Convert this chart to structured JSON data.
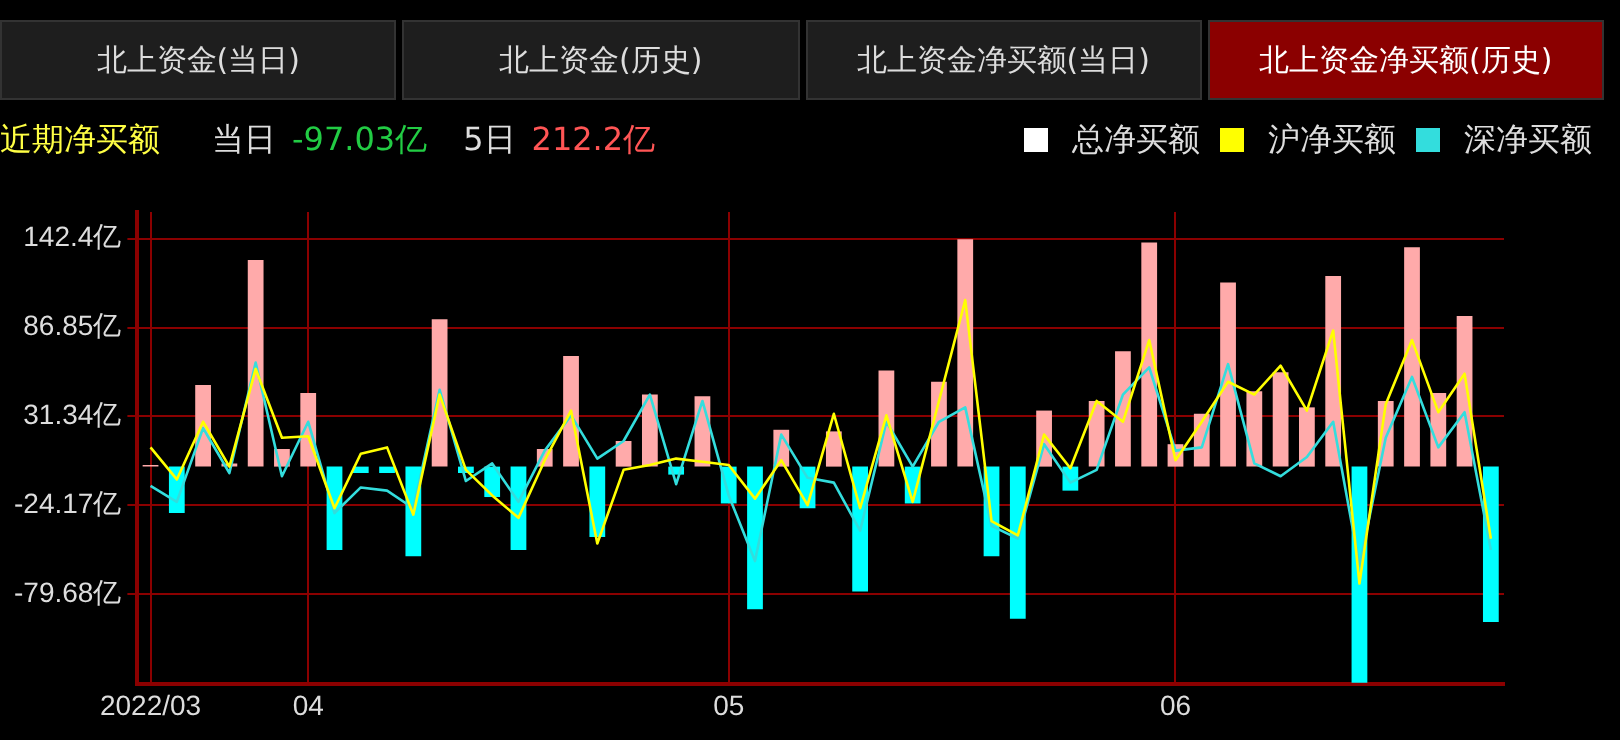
{
  "chart_data": {
    "type": "bar",
    "title": "近期净买额",
    "annotations": [
      "北上资金(当日)",
      "北上资金(历史)",
      "北上资金净买额(当日)",
      "北上资金净买额(历史)",
      "当日",
      "-97.03亿",
      "5日",
      "212.2亿"
    ],
    "categories": [
      "2022/03",
      null,
      null,
      null,
      null,
      null,
      "04",
      null,
      null,
      null,
      null,
      null,
      null,
      null,
      null,
      null,
      null,
      null,
      null,
      null,
      null,
      null,
      "05",
      null,
      null,
      null,
      null,
      null,
      null,
      null,
      null,
      null,
      null,
      null,
      null,
      null,
      null,
      null,
      null,
      "06",
      null,
      null,
      null,
      null,
      null,
      null,
      null,
      null,
      null,
      null,
      null,
      null
    ],
    "series": [
      {
        "name": "总净买额",
        "color": "#ffffff",
        "colors": [
          "#ffaaaa",
          "#00ffff",
          "#ffaaaa",
          "#ffaaaa",
          "#ffaaaa",
          "#ffaaaa",
          "#ffaaaa",
          "#00ffff",
          "#00ffff",
          "#00ffff",
          "#00ffff",
          "#ffaaaa",
          "#00ffff",
          "#00ffff",
          "#00ffff",
          "#ffaaaa",
          "#ffaaaa",
          "#00ffff",
          "#ffaaaa",
          "#ffaaaa",
          "#00ffff",
          "#ffaaaa",
          "#00ffff",
          "#00ffff",
          "#ffaaaa",
          "#00ffff",
          "#ffaaaa",
          "#00ffff",
          "#ffaaaa",
          "#00ffff",
          "#ffaaaa",
          "#ffaaaa",
          "#00ffff",
          "#00ffff",
          "#ffaaaa",
          "#00ffff",
          "#ffaaaa",
          "#ffaaaa",
          "#ffaaaa",
          "#ffaaaa",
          "#ffaaaa",
          "#ffaaaa",
          "#ffaaaa",
          "#ffaaaa",
          "#ffaaaa",
          "#ffaaaa",
          "#00ffff",
          "#ffaaaa",
          "#ffaaaa",
          "#ffaaaa",
          "#ffaaaa",
          "#00ffff"
        ],
        "values": [
          1,
          -29,
          51,
          2,
          129,
          11,
          46,
          -52,
          -4,
          -4,
          -56,
          92,
          -4,
          -19,
          -52,
          11,
          69,
          -44,
          16,
          45,
          -5,
          44,
          -23,
          -89,
          23,
          -26,
          22,
          -78,
          60,
          -23,
          53,
          142,
          -56,
          -95,
          35,
          -15,
          41,
          72,
          140,
          14,
          33,
          115,
          47,
          59,
          37,
          119,
          -135,
          41,
          137,
          46,
          94,
          -97
        ]
      },
      {
        "name": "沪净买额",
        "type": "line",
        "color": "#ffff00",
        "values": [
          12,
          -8,
          28,
          0,
          61,
          18,
          19,
          -26,
          8,
          12,
          -30,
          45,
          -2,
          -18,
          -32,
          4,
          35,
          -48,
          -2,
          1,
          5,
          3,
          1,
          -20,
          4,
          -24,
          33,
          -26,
          32,
          -22,
          41,
          104,
          -34,
          -43,
          20,
          -1,
          41,
          28,
          79,
          4,
          28,
          53,
          45,
          63,
          35,
          85,
          -73,
          39,
          79,
          34,
          58,
          -45
        ]
      },
      {
        "name": "深净买额",
        "type": "line",
        "color": "#33dddd",
        "values": [
          -12,
          -22,
          24,
          -4,
          65,
          -6,
          28,
          -29,
          -13,
          -15,
          -26,
          48,
          -9,
          2,
          -22,
          10,
          32,
          5,
          16,
          45,
          -11,
          41,
          -18,
          -59,
          20,
          -7,
          -10,
          -40,
          28,
          0,
          28,
          37,
          -37,
          -45,
          14,
          -10,
          -2,
          45,
          62,
          10,
          12,
          64,
          2,
          -6,
          6,
          28,
          -62,
          18,
          56,
          12,
          34,
          -52
        ]
      }
    ],
    "ylim": [
      -136,
      159
    ],
    "yticks": [
      {
        "value": -79.68,
        "label": "-79.68亿"
      },
      {
        "value": -24.17,
        "label": "-24.17亿"
      },
      {
        "value": 31.34,
        "label": "31.34亿"
      },
      {
        "value": 86.85,
        "label": "86.85亿"
      },
      {
        "value": 142.4,
        "label": "142.4亿"
      }
    ],
    "grid": true,
    "legend": "top right",
    "marker": "none",
    "line_style": "solid"
  }
}
